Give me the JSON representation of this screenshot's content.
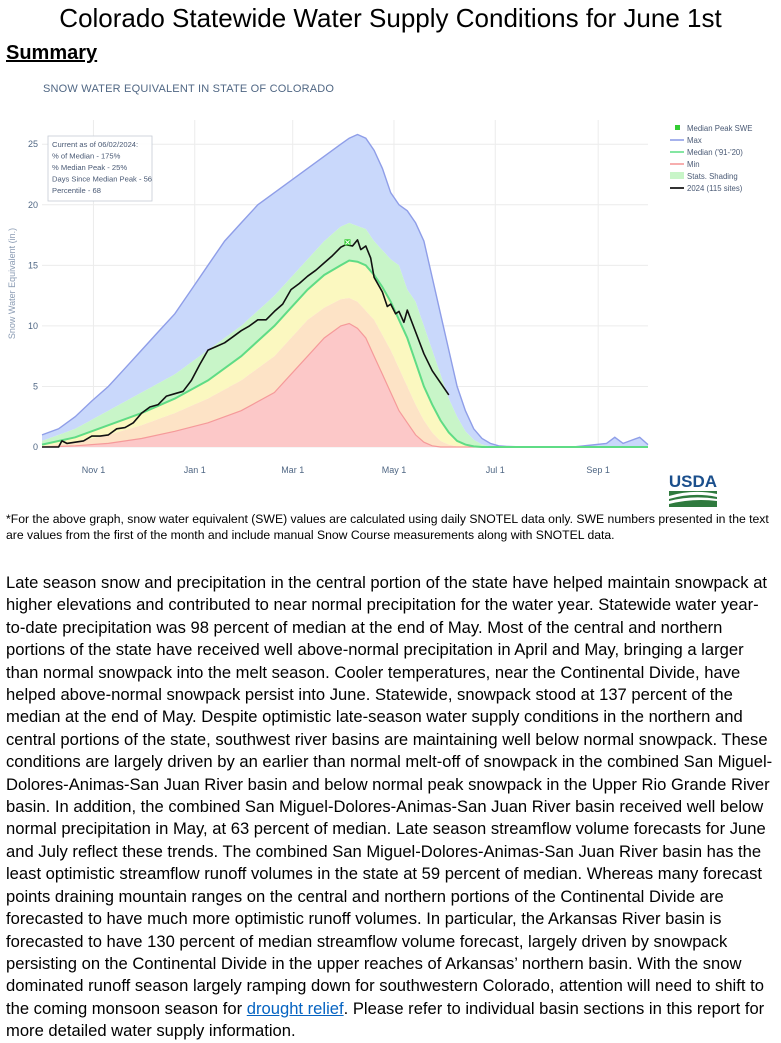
{
  "document": {
    "title": "Colorado Statewide Water Supply Conditions for June 1st",
    "section_heading": "Summary"
  },
  "chart_data": {
    "type": "area",
    "title": "SNOW WATER EQUIVALENT IN STATE OF COLORADO",
    "ylabel": "Snow Water Equivalent (in.)",
    "xlabel": "",
    "x_unit": "day of water year (Oct 1 = 0)",
    "xlim": [
      0,
      365
    ],
    "ylim": [
      0,
      27
    ],
    "yticks": [
      0,
      5,
      10,
      15,
      20,
      25
    ],
    "xtick_labels": [
      {
        "day": 31,
        "label": "Nov 1"
      },
      {
        "day": 92,
        "label": "Jan 1"
      },
      {
        "day": 151,
        "label": "Mar 1"
      },
      {
        "day": 212,
        "label": "May 1"
      },
      {
        "day": 273,
        "label": "Jul 1"
      },
      {
        "day": 335,
        "label": "Sep 1"
      }
    ],
    "grid": true,
    "legend_position": "top-right",
    "legend": [
      {
        "label": "Median Peak SWE",
        "kind": "marker",
        "color": "#33cc33"
      },
      {
        "label": "Max",
        "kind": "line",
        "color": "#8f9ee8"
      },
      {
        "label": "Median ('91-'20)",
        "kind": "line",
        "color": "#66e08a"
      },
      {
        "label": "Min",
        "kind": "line",
        "color": "#f59a9a"
      },
      {
        "label": "Stats. Shading",
        "kind": "swatch",
        "color": "#c8f5c8"
      },
      {
        "label": "2024 (115 sites)",
        "kind": "line",
        "color": "#000000"
      }
    ],
    "annotation": [
      "Current as of 06/02/2024:",
      "% of Median - 175%",
      "% Median Peak - 25%",
      "Days Since Median Peak - 56",
      "Percentile - 68"
    ],
    "series": [
      {
        "name": "Max",
        "x": [
          0,
          10,
          20,
          30,
          40,
          50,
          60,
          70,
          80,
          90,
          100,
          110,
          120,
          130,
          140,
          150,
          160,
          170,
          180,
          185,
          190,
          195,
          200,
          205,
          210,
          215,
          220,
          225,
          230,
          235,
          240,
          245,
          250,
          255,
          260,
          265,
          270,
          275,
          280,
          290,
          320,
          340,
          345,
          350,
          360,
          365
        ],
        "values": [
          1,
          1.5,
          2.5,
          3.8,
          5,
          6.5,
          8,
          9.5,
          11,
          13,
          15,
          17,
          18.5,
          20,
          21,
          22,
          23,
          24,
          25,
          25.5,
          25.8,
          25.5,
          24.5,
          23,
          21,
          20,
          19.5,
          18.5,
          17,
          14,
          11,
          8,
          5,
          3,
          1.5,
          0.7,
          0.3,
          0.1,
          0.05,
          0,
          0,
          0.3,
          0.8,
          0.3,
          0.8,
          0.2
        ]
      },
      {
        "name": "Upper Stats. Band",
        "x": [
          0,
          20,
          40,
          60,
          80,
          100,
          120,
          140,
          150,
          160,
          170,
          180,
          185,
          195,
          200,
          210,
          215,
          220,
          225,
          230,
          235,
          240,
          245,
          250,
          255,
          260,
          265,
          270,
          275,
          280,
          365
        ],
        "values": [
          0.5,
          1.5,
          3,
          4.5,
          6,
          8,
          10,
          12.5,
          14,
          15.5,
          17,
          18.2,
          18.5,
          18,
          17,
          15.5,
          15,
          13,
          12,
          10,
          8,
          6,
          4,
          2.5,
          1.3,
          0.6,
          0.2,
          0.05,
          0,
          0,
          0
        ]
      },
      {
        "name": "Median ('91-'20)",
        "x": [
          0,
          20,
          40,
          60,
          80,
          100,
          120,
          140,
          150,
          160,
          170,
          180,
          185,
          190,
          195,
          200,
          205,
          210,
          215,
          220,
          225,
          230,
          235,
          240,
          245,
          250,
          255,
          260,
          265,
          270,
          365
        ],
        "values": [
          0.2,
          0.8,
          1.8,
          2.8,
          4,
          5.5,
          7.5,
          10,
          11.5,
          13,
          14.2,
          15,
          15.4,
          15.3,
          15,
          14.2,
          13.2,
          12,
          10.5,
          9,
          7,
          5,
          3.5,
          2.2,
          1.2,
          0.5,
          0.2,
          0.05,
          0,
          0,
          0
        ]
      },
      {
        "name": "Lower Stats. Band",
        "x": [
          0,
          20,
          40,
          60,
          80,
          100,
          120,
          140,
          150,
          160,
          170,
          180,
          185,
          190,
          200,
          210,
          215,
          220,
          225,
          230,
          235,
          240,
          245,
          250,
          255,
          365
        ],
        "values": [
          0.05,
          0.4,
          1,
          1.8,
          2.8,
          4,
          5.5,
          7.5,
          9,
          10.5,
          11.5,
          12.2,
          12.3,
          12,
          10.5,
          8,
          6.5,
          5,
          3.5,
          2.2,
          1.2,
          0.5,
          0.2,
          0.05,
          0,
          0
        ]
      },
      {
        "name": "Min",
        "x": [
          0,
          20,
          40,
          60,
          80,
          100,
          120,
          140,
          150,
          160,
          170,
          180,
          185,
          190,
          195,
          200,
          205,
          210,
          215,
          220,
          225,
          230,
          235,
          240,
          245,
          365
        ],
        "values": [
          0,
          0.1,
          0.3,
          0.7,
          1.3,
          2,
          3,
          4.5,
          6,
          7.5,
          9,
          10,
          10.2,
          9.8,
          9,
          7.5,
          6,
          4.5,
          3,
          2,
          1,
          0.4,
          0.1,
          0,
          0,
          0
        ]
      },
      {
        "name": "2024 (115 sites)",
        "x": [
          0,
          10,
          12,
          15,
          20,
          25,
          30,
          35,
          40,
          45,
          50,
          55,
          60,
          65,
          70,
          75,
          80,
          85,
          90,
          95,
          100,
          105,
          110,
          115,
          120,
          125,
          130,
          135,
          140,
          145,
          150,
          155,
          160,
          165,
          170,
          175,
          180,
          183,
          187,
          190,
          192,
          195,
          198,
          200,
          205,
          208,
          210,
          213,
          215,
          218,
          220,
          225,
          230,
          235,
          240,
          245
        ],
        "values": [
          0,
          0,
          0.5,
          0.3,
          0.4,
          0.5,
          0.9,
          0.9,
          1.0,
          1.5,
          1.6,
          2.0,
          2.8,
          3.3,
          3.5,
          4.2,
          4.4,
          4.6,
          5.5,
          6.8,
          8.0,
          8.3,
          8.6,
          9.1,
          9.6,
          10.0,
          10.5,
          10.5,
          11.2,
          11.8,
          13.0,
          13.5,
          14.1,
          14.6,
          15.2,
          15.8,
          16.5,
          16.7,
          16.6,
          17.1,
          16.3,
          16.6,
          15.6,
          14.0,
          12.8,
          11.6,
          11.8,
          11.0,
          11.2,
          10.3,
          11.3,
          9.5,
          7.7,
          6.3,
          5.3,
          4.3
        ]
      }
    ],
    "median_peak": {
      "x": 184,
      "value": 16.9
    }
  },
  "footnote": "*For the above graph, snow water equivalent (SWE) values are calculated using daily SNOTEL data only. SWE numbers presented in the text are values from the first of the month and include manual Snow Course measurements along with SNOTEL data.",
  "logo_text": "USDA",
  "body": {
    "main": "Late season snow and precipitation in the central portion of the state have helped maintain snowpack at higher elevations and contributed to near normal precipitation for the water year. Statewide water year-to-date precipitation was 98 percent of median at the end of May. Most of the central and northern portions of the state have received well above-normal precipitation in April and May, bringing a larger than normal snowpack into the melt season. Cooler temperatures, near the Continental Divide, have helped above-normal snowpack persist into June. Statewide, snowpack stood at 137 percent of the median at the end of May. Despite optimistic late-season water supply conditions in the northern and central portions of the state, southwest river basins are maintaining well below normal snowpack. These conditions are largely driven by an earlier than normal melt-off of snowpack in the combined San Miguel-Dolores-Animas-San Juan River basin and below normal peak snowpack in the Upper Rio Grande River basin. In addition, the combined San Miguel-Dolores-Animas-San Juan River basin received well below normal precipitation in May, at 63 percent of median. Late season streamflow volume forecasts for June and July reflect these trends. The combined San Miguel-Dolores-Animas-San Juan River basin has the least optimistic streamflow runoff volumes in the state at 59 percent of median. Whereas many forecast points draining mountain ranges on the central and northern portions of the Continental Divide are forecasted to have much more optimistic runoff volumes. In particular, the Arkansas River basin is forecasted to have 130 percent of median streamflow volume forecast, largely driven by snowpack persisting on the Continental Divide in the upper reaches of Arkansas’ northern basin. With the snow dominated runoff season largely ramping down for southwestern Colorado, attention will need to shift to the coming monsoon season for ",
    "link": "drought relief",
    "tail": ".  Please refer to individual basin sections in this report for more detailed water supply information."
  }
}
